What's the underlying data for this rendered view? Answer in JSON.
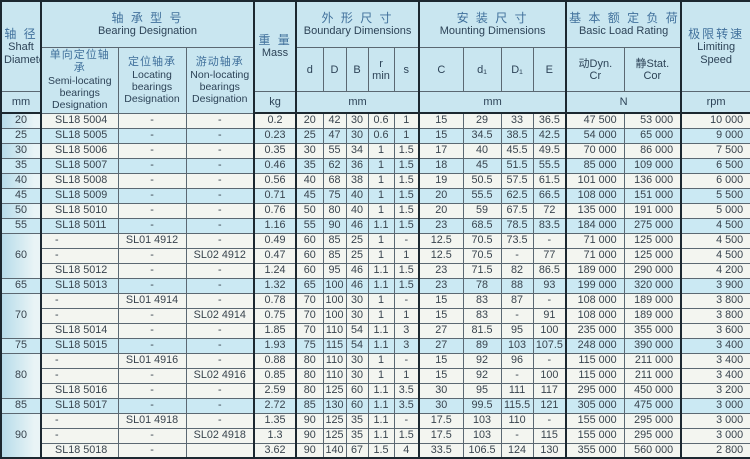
{
  "table": {
    "header": {
      "shaft": {
        "zh": "轴 径",
        "en1": "Shaft",
        "en2": "Diameter",
        "unit": "mm"
      },
      "bearing": {
        "zh": "轴 承 型 号",
        "en": "Bearing Designation",
        "semi": {
          "zh": "单向定位轴承",
          "en": "Semi-locating bearings Designation"
        },
        "locating": {
          "zh": "定位轴承",
          "en": "Locating bearings Designation"
        },
        "non_locating": {
          "zh": "游动轴承",
          "en": "Non-locating bearings Designation"
        }
      },
      "mass": {
        "zh": "重 量",
        "en": "Mass",
        "unit": "kg"
      },
      "boundary": {
        "zh": "外 形 尺 寸",
        "en": "Boundary Dimensions",
        "d": "d",
        "D": "D",
        "B": "B",
        "r1": "r",
        "r2": "min",
        "s": "s",
        "unit": "mm"
      },
      "mounting": {
        "zh": "安 装 尺 寸",
        "en": "Mounting Dimensions",
        "C": "C",
        "d1": "d₁",
        "D1": "D₁",
        "E": "E",
        "unit": "mm"
      },
      "load": {
        "zh": "基 本 额 定 负 荷",
        "en": "Basic Load Rating",
        "dyn1": "动Dyn.",
        "dyn2": "Cr",
        "stat1": "静Stat.",
        "stat2": "Cor",
        "unit": "N"
      },
      "speed": {
        "zh": "极限转速",
        "en1": "Limiting",
        "en2": "Speed",
        "unit": "rpm"
      }
    },
    "rows": [
      {
        "shaft": "20",
        "span": 1,
        "semi": "SL18 5004",
        "loc": "-",
        "non": "-",
        "mass": "0.2",
        "d": "20",
        "D": "42",
        "B": "30",
        "r": "0.6",
        "s": "1",
        "C": "15",
        "d1": "29",
        "D1": "33",
        "E": "36.5",
        "cr": "47 500",
        "cor": "53 000",
        "rpm": "10 000",
        "hl": false,
        "cont": false
      },
      {
        "shaft": "25",
        "span": 1,
        "semi": "SL18 5005",
        "loc": "-",
        "non": "-",
        "mass": "0.23",
        "d": "25",
        "D": "47",
        "B": "30",
        "r": "0.6",
        "s": "1",
        "C": "15",
        "d1": "34.5",
        "D1": "38.5",
        "E": "42.5",
        "cr": "54 000",
        "cor": "65 000",
        "rpm": "9 000",
        "hl": true,
        "cont": false
      },
      {
        "shaft": "30",
        "span": 1,
        "semi": "SL18 5006",
        "loc": "-",
        "non": "-",
        "mass": "0.35",
        "d": "30",
        "D": "55",
        "B": "34",
        "r": "1",
        "s": "1.5",
        "C": "17",
        "d1": "40",
        "D1": "45.5",
        "E": "49.5",
        "cr": "70 000",
        "cor": "86 000",
        "rpm": "7 500",
        "hl": false,
        "cont": false
      },
      {
        "shaft": "35",
        "span": 1,
        "semi": "SL18 5007",
        "loc": "-",
        "non": "-",
        "mass": "0.46",
        "d": "35",
        "D": "62",
        "B": "36",
        "r": "1",
        "s": "1.5",
        "C": "18",
        "d1": "45",
        "D1": "51.5",
        "E": "55.5",
        "cr": "85 000",
        "cor": "109 000",
        "rpm": "6 500",
        "hl": true,
        "cont": false
      },
      {
        "shaft": "40",
        "span": 1,
        "semi": "SL18 5008",
        "loc": "-",
        "non": "-",
        "mass": "0.56",
        "d": "40",
        "D": "68",
        "B": "38",
        "r": "1",
        "s": "1.5",
        "C": "19",
        "d1": "50.5",
        "D1": "57.5",
        "E": "61.5",
        "cr": "101 000",
        "cor": "136 000",
        "rpm": "6 000",
        "hl": false,
        "cont": false
      },
      {
        "shaft": "45",
        "span": 1,
        "semi": "SL18 5009",
        "loc": "-",
        "non": "-",
        "mass": "0.71",
        "d": "45",
        "D": "75",
        "B": "40",
        "r": "1",
        "s": "1.5",
        "C": "20",
        "d1": "55.5",
        "D1": "62.5",
        "E": "66.5",
        "cr": "108 000",
        "cor": "151 000",
        "rpm": "5 500",
        "hl": true,
        "cont": false
      },
      {
        "shaft": "50",
        "span": 1,
        "semi": "SL18 5010",
        "loc": "-",
        "non": "-",
        "mass": "0.76",
        "d": "50",
        "D": "80",
        "B": "40",
        "r": "1",
        "s": "1.5",
        "C": "20",
        "d1": "59",
        "D1": "67.5",
        "E": "72",
        "cr": "135 000",
        "cor": "191 000",
        "rpm": "5 000",
        "hl": false,
        "cont": false
      },
      {
        "shaft": "55",
        "span": 1,
        "semi": "SL18 5011",
        "loc": "-",
        "non": "-",
        "mass": "1.16",
        "d": "55",
        "D": "90",
        "B": "46",
        "r": "1.1",
        "s": "1.5",
        "C": "23",
        "d1": "68.5",
        "D1": "78.5",
        "E": "83.5",
        "cr": "184 000",
        "cor": "275 000",
        "rpm": "4 500",
        "hl": true,
        "cont": false
      },
      {
        "shaft": "60",
        "span": 3,
        "semi": "-",
        "loc": "SL01 4912",
        "non": "-",
        "mass": "0.49",
        "d": "60",
        "D": "85",
        "B": "25",
        "r": "1",
        "s": "-",
        "C": "12.5",
        "d1": "70.5",
        "D1": "73.5",
        "E": "-",
        "cr": "71 000",
        "cor": "125 000",
        "rpm": "4 500",
        "hl": false,
        "cont": false
      },
      {
        "semi": "-",
        "loc": "-",
        "non": "SL02 4912",
        "mass": "0.47",
        "d": "60",
        "D": "85",
        "B": "25",
        "r": "1",
        "s": "1",
        "C": "12.5",
        "d1": "70.5",
        "D1": "-",
        "E": "77",
        "cr": "71 000",
        "cor": "125 000",
        "rpm": "4 500",
        "hl": false,
        "cont": true
      },
      {
        "semi": "SL18 5012",
        "loc": "-",
        "non": "-",
        "mass": "1.24",
        "d": "60",
        "D": "95",
        "B": "46",
        "r": "1.1",
        "s": "1.5",
        "C": "23",
        "d1": "71.5",
        "D1": "82",
        "E": "86.5",
        "cr": "189 000",
        "cor": "290 000",
        "rpm": "4 200",
        "hl": false,
        "cont": true
      },
      {
        "shaft": "65",
        "span": 1,
        "semi": "SL18 5013",
        "loc": "-",
        "non": "-",
        "mass": "1.32",
        "d": "65",
        "D": "100",
        "B": "46",
        "r": "1.1",
        "s": "1.5",
        "C": "23",
        "d1": "78",
        "D1": "88",
        "E": "93",
        "cr": "199 000",
        "cor": "320 000",
        "rpm": "3 900",
        "hl": true,
        "cont": false
      },
      {
        "shaft": "70",
        "span": 3,
        "semi": "-",
        "loc": "SL01 4914",
        "non": "-",
        "mass": "0.78",
        "d": "70",
        "D": "100",
        "B": "30",
        "r": "1",
        "s": "-",
        "C": "15",
        "d1": "83",
        "D1": "87",
        "E": "-",
        "cr": "108 000",
        "cor": "189 000",
        "rpm": "3 800",
        "hl": false,
        "cont": false
      },
      {
        "semi": "-",
        "loc": "-",
        "non": "SL02 4914",
        "mass": "0.75",
        "d": "70",
        "D": "100",
        "B": "30",
        "r": "1",
        "s": "1",
        "C": "15",
        "d1": "83",
        "D1": "-",
        "E": "91",
        "cr": "108 000",
        "cor": "189 000",
        "rpm": "3 800",
        "hl": false,
        "cont": true
      },
      {
        "semi": "SL18 5014",
        "loc": "-",
        "non": "-",
        "mass": "1.85",
        "d": "70",
        "D": "110",
        "B": "54",
        "r": "1.1",
        "s": "3",
        "C": "27",
        "d1": "81.5",
        "D1": "95",
        "E": "100",
        "cr": "235 000",
        "cor": "355 000",
        "rpm": "3 600",
        "hl": false,
        "cont": true
      },
      {
        "shaft": "75",
        "span": 1,
        "semi": "SL18 5015",
        "loc": "-",
        "non": "-",
        "mass": "1.93",
        "d": "75",
        "D": "115",
        "B": "54",
        "r": "1.1",
        "s": "3",
        "C": "27",
        "d1": "89",
        "D1": "103",
        "E": "107.5",
        "cr": "248 000",
        "cor": "390 000",
        "rpm": "3 400",
        "hl": true,
        "cont": false
      },
      {
        "shaft": "80",
        "span": 3,
        "semi": "-",
        "loc": "SL01 4916",
        "non": "-",
        "mass": "0.88",
        "d": "80",
        "D": "110",
        "B": "30",
        "r": "1",
        "s": "-",
        "C": "15",
        "d1": "92",
        "D1": "96",
        "E": "-",
        "cr": "115 000",
        "cor": "211 000",
        "rpm": "3 400",
        "hl": false,
        "cont": false
      },
      {
        "semi": "-",
        "loc": "-",
        "non": "SL02 4916",
        "mass": "0.85",
        "d": "80",
        "D": "110",
        "B": "30",
        "r": "1",
        "s": "1",
        "C": "15",
        "d1": "92",
        "D1": "-",
        "E": "100",
        "cr": "115 000",
        "cor": "211 000",
        "rpm": "3 400",
        "hl": false,
        "cont": true
      },
      {
        "semi": "SL18 5016",
        "loc": "-",
        "non": "-",
        "mass": "2.59",
        "d": "80",
        "D": "125",
        "B": "60",
        "r": "1.1",
        "s": "3.5",
        "C": "30",
        "d1": "95",
        "D1": "111",
        "E": "117",
        "cr": "295 000",
        "cor": "450 000",
        "rpm": "3 200",
        "hl": false,
        "cont": true
      },
      {
        "shaft": "85",
        "span": 1,
        "semi": "SL18 5017",
        "loc": "-",
        "non": "-",
        "mass": "2.72",
        "d": "85",
        "D": "130",
        "B": "60",
        "r": "1.1",
        "s": "3.5",
        "C": "30",
        "d1": "99.5",
        "D1": "115.5",
        "E": "121",
        "cr": "305 000",
        "cor": "475 000",
        "rpm": "3 000",
        "hl": true,
        "cont": false
      },
      {
        "shaft": "90",
        "span": 3,
        "semi": "-",
        "loc": "SL01 4918",
        "non": "-",
        "mass": "1.35",
        "d": "90",
        "D": "125",
        "B": "35",
        "r": "1.1",
        "s": "-",
        "C": "17.5",
        "d1": "103",
        "D1": "110",
        "E": "-",
        "cr": "155 000",
        "cor": "295 000",
        "rpm": "3 000",
        "hl": false,
        "cont": false
      },
      {
        "semi": "-",
        "loc": "-",
        "non": "SL02 4918",
        "mass": "1.3",
        "d": "90",
        "D": "125",
        "B": "35",
        "r": "1.1",
        "s": "1.5",
        "C": "17.5",
        "d1": "103",
        "D1": "-",
        "E": "115",
        "cr": "155 000",
        "cor": "295 000",
        "rpm": "3 000",
        "hl": false,
        "cont": true
      },
      {
        "semi": "SL18 5018",
        "loc": "-",
        "non": "",
        "mass": "3.62",
        "d": "90",
        "D": "140",
        "B": "67",
        "r": "1.5",
        "s": "4",
        "C": "33.5",
        "d1": "106.5",
        "D1": "124",
        "E": "130",
        "cr": "355 000",
        "cor": "560 000",
        "rpm": "2 800",
        "hl": false,
        "cont": true
      }
    ],
    "colors": {
      "highlight_row": "#cbe9f3",
      "header_bg": "#c9e6f0",
      "row_bg": "#f3f5f0",
      "border_dark": "#1c2830",
      "text": "#39444e",
      "header_zh_text": "#41719c"
    }
  }
}
